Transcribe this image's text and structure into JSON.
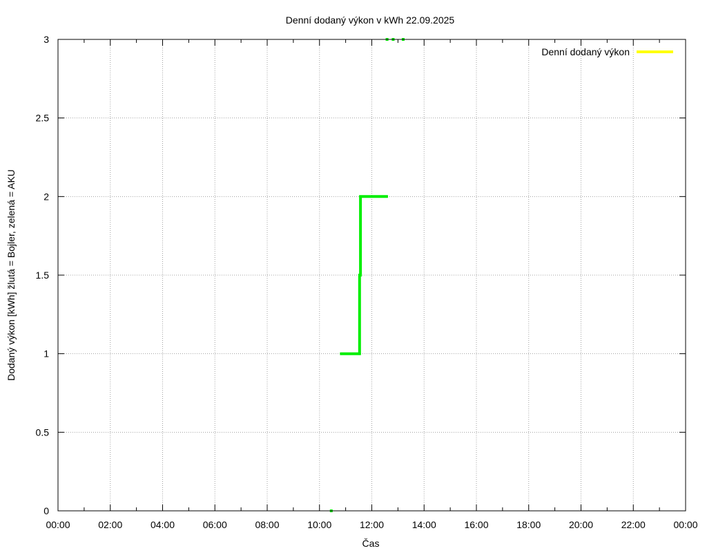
{
  "chart_data": {
    "type": "line",
    "title": "Denní dodaný výkon v kWh 22.09.2025",
    "xlabel": "Čas",
    "ylabel": "Dodaný výkon [kWh]  žlutá = Bojler, zelená = AKU",
    "x_unit": "time of day (HH:MM)",
    "xlim": [
      "00:00",
      "24:00"
    ],
    "ylim": [
      0,
      3
    ],
    "grid": true,
    "legend_placement": "top-right",
    "x_ticks": [
      "00:00",
      "02:00",
      "04:00",
      "06:00",
      "08:00",
      "10:00",
      "12:00",
      "14:00",
      "16:00",
      "18:00",
      "20:00",
      "22:00",
      "00:00"
    ],
    "y_ticks": [
      "0",
      "0.5",
      "1",
      "1.5",
      "2",
      "2.5",
      "3"
    ],
    "series": [
      {
        "name": "Denní dodaný výkon",
        "color": "#ffff00",
        "in_legend": true,
        "points": []
      },
      {
        "color": "#00ee00",
        "in_legend": false,
        "points": [
          {
            "x": "10:27",
            "y": 0
          },
          {
            "x": "10:47",
            "y": 1
          },
          {
            "x": "11:32",
            "y": 1
          },
          {
            "x": "11:32",
            "y": 1.5
          },
          {
            "x": "11:34",
            "y": 1.5
          },
          {
            "x": "11:34",
            "y": 2
          },
          {
            "x": "12:37",
            "y": 2
          },
          {
            "x": "12:35",
            "y": 3
          },
          {
            "x": "12:49",
            "y": 3
          },
          {
            "x": "13:12",
            "y": 3
          }
        ]
      }
    ]
  }
}
